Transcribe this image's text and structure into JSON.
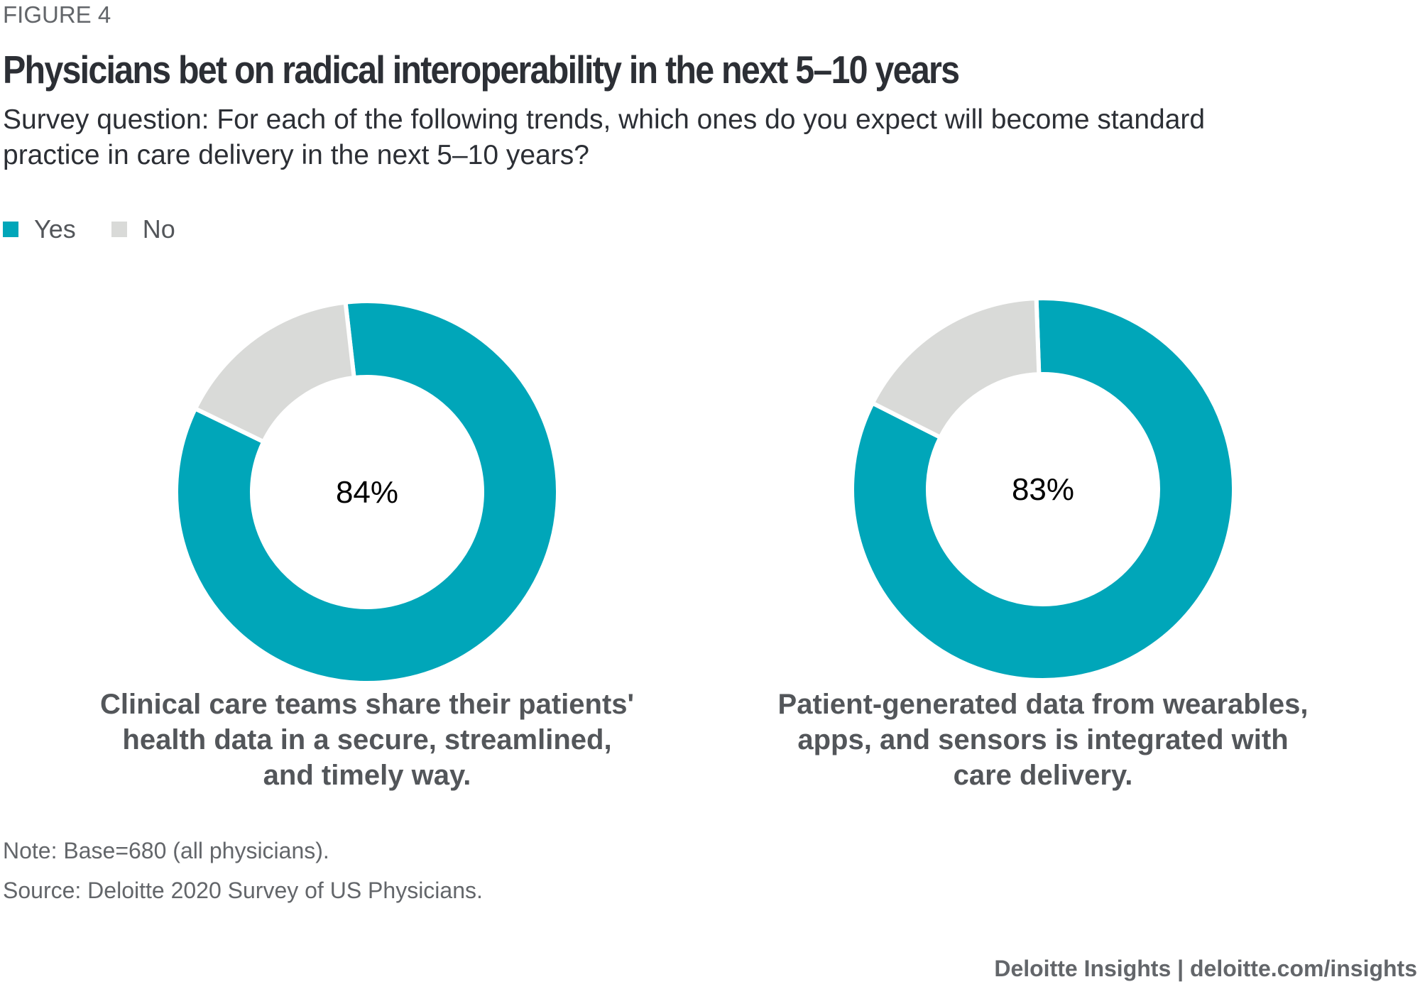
{
  "figure_label": "FIGURE 4",
  "chart_data": {
    "type": "pie",
    "title": "Physicians bet on radical interoperability in the next 5–10 years",
    "subtitle": "Survey question: For each of the following trends, which ones do you expect will become standard practice in care delivery in the next 5–10 years?",
    "legend": [
      {
        "label": "Yes",
        "color": "#00a6b9"
      },
      {
        "label": "No",
        "color": "#d9dad8"
      }
    ],
    "legend_placement": "top-left",
    "charts": [
      {
        "label": "Clinical care teams share their patients' health data in a secure, streamlined, and timely way.",
        "yes": 84,
        "no": 16,
        "center_label": "84%"
      },
      {
        "label": "Patient-generated data from wearables, apps, and sensors is integrated with care delivery.",
        "yes": 83,
        "no": 17,
        "center_label": "83%"
      }
    ]
  },
  "note": "Note: Base=680 (all physicians).",
  "source": "Source: Deloitte 2020 Survey of US Physicians.",
  "footer": "Deloitte Insights | deloitte.com/insights"
}
